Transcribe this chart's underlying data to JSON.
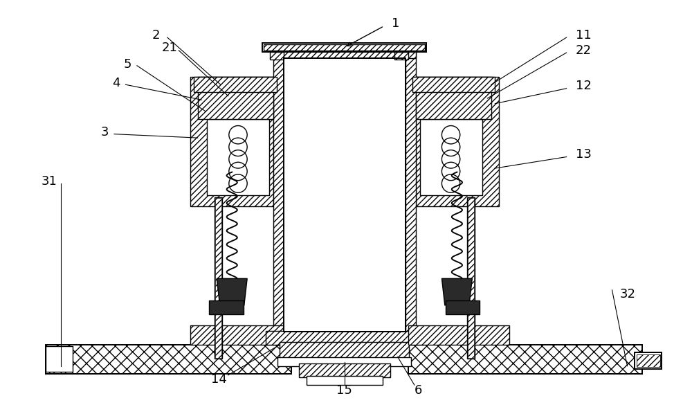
{
  "bg": "#ffffff",
  "lc": "#000000",
  "figsize": [
    10.0,
    5.85
  ],
  "dpi": 100,
  "xlim": [
    0,
    900
  ],
  "ylim": [
    0,
    530
  ],
  "label_fs": 13
}
